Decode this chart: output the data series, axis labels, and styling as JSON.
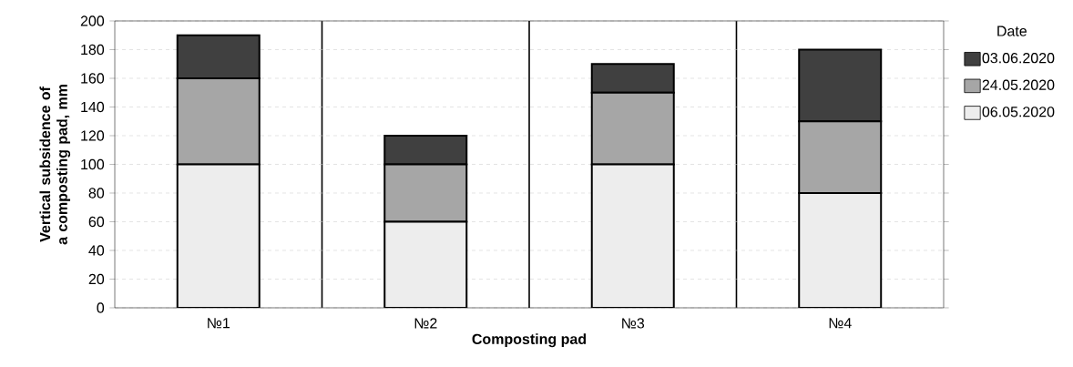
{
  "chart_data": {
    "type": "bar",
    "stacked": true,
    "xlabel": "Composting pad",
    "ylabel": "Vertical subsidence of a composting pad, mm",
    "legend_title": "Date",
    "categories": [
      "№1",
      "№2",
      "№3",
      "№4"
    ],
    "series": [
      {
        "name": "06.05.2020",
        "color": "#ededed",
        "values": [
          100,
          60,
          100,
          80
        ]
      },
      {
        "name": "24.05.2020",
        "color": "#a6a6a6",
        "values": [
          60,
          40,
          50,
          50
        ]
      },
      {
        "name": "03.06.2020",
        "color": "#404040",
        "values": [
          30,
          20,
          20,
          50
        ]
      }
    ],
    "ylim": [
      0,
      200
    ],
    "yticks": [
      0,
      20,
      40,
      60,
      80,
      100,
      120,
      140,
      160,
      180,
      200
    ],
    "grid": "y",
    "legend": "right"
  }
}
